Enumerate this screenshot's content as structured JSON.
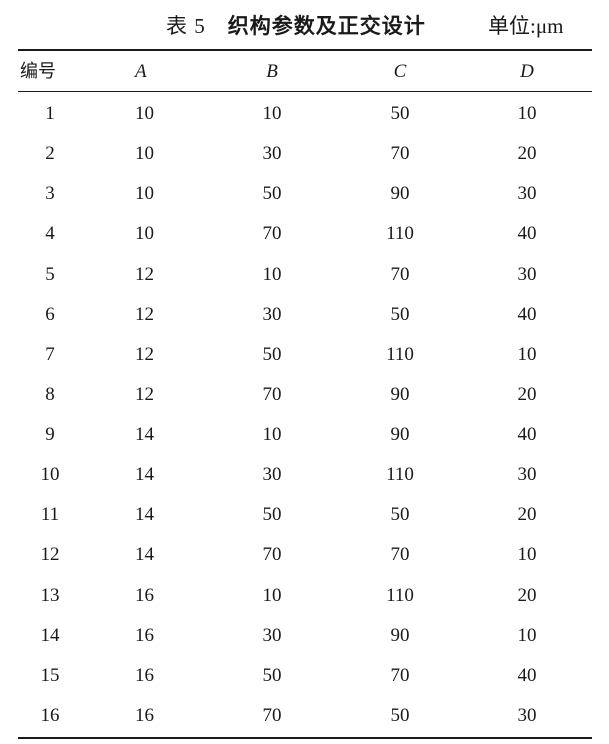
{
  "title": {
    "label": "表 5",
    "text": "织构参数及正交设计",
    "unit": "单位:μm"
  },
  "columns": [
    "编号",
    "A",
    "B",
    "C",
    "D"
  ],
  "rows": [
    [
      "1",
      "10",
      "10",
      "50",
      "10"
    ],
    [
      "2",
      "10",
      "30",
      "70",
      "20"
    ],
    [
      "3",
      "10",
      "50",
      "90",
      "30"
    ],
    [
      "4",
      "10",
      "70",
      "110",
      "40"
    ],
    [
      "5",
      "12",
      "10",
      "70",
      "30"
    ],
    [
      "6",
      "12",
      "30",
      "50",
      "40"
    ],
    [
      "7",
      "12",
      "50",
      "110",
      "10"
    ],
    [
      "8",
      "12",
      "70",
      "90",
      "20"
    ],
    [
      "9",
      "14",
      "10",
      "90",
      "40"
    ],
    [
      "10",
      "14",
      "30",
      "110",
      "30"
    ],
    [
      "11",
      "14",
      "50",
      "50",
      "20"
    ],
    [
      "12",
      "14",
      "70",
      "70",
      "10"
    ],
    [
      "13",
      "16",
      "10",
      "110",
      "20"
    ],
    [
      "14",
      "16",
      "30",
      "90",
      "10"
    ],
    [
      "15",
      "16",
      "50",
      "70",
      "40"
    ],
    [
      "16",
      "16",
      "70",
      "50",
      "30"
    ]
  ]
}
